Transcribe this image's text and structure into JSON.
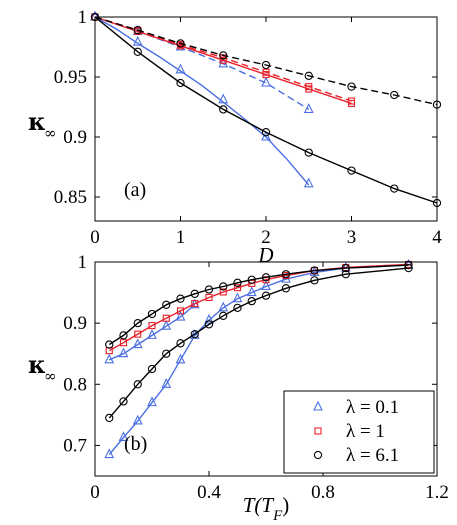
{
  "colors": {
    "blue": "#4a6fe3",
    "red": "#e8202a",
    "black": "#000000"
  },
  "chart_data": [
    {
      "type": "line",
      "panel_label": "(a)",
      "xlabel": "D",
      "ylabel_symbol": "κ",
      "ylabel_subscript": "∞",
      "xlim": [
        0,
        4
      ],
      "ylim": [
        0.83,
        1.0
      ],
      "xticks": [
        0,
        1,
        2,
        3,
        4
      ],
      "xtick_labels": [
        "0",
        "1",
        "2",
        "3",
        "4"
      ],
      "yticks": [
        0.85,
        0.9,
        0.95,
        1.0
      ],
      "ytick_labels": [
        "0.85",
        "0.9",
        "0.95",
        "1"
      ],
      "grid": false,
      "series": [
        {
          "color": "#4a6fe3",
          "style": "solid",
          "markers": false,
          "x": [
            0,
            0.25,
            0.5,
            0.75,
            1,
            1.25,
            1.5,
            1.75,
            2,
            2.25,
            2.5
          ],
          "y": [
            1.0,
            0.99,
            0.978,
            0.967,
            0.955,
            0.943,
            0.929,
            0.915,
            0.9,
            0.881,
            0.86
          ]
        },
        {
          "color": "#4a6fe3",
          "style": "none",
          "marker": "triangle",
          "x": [
            0,
            0.5,
            1,
            1.5,
            2,
            2.5
          ],
          "y": [
            1.0,
            0.979,
            0.956,
            0.931,
            0.9,
            0.861
          ]
        },
        {
          "color": "#4a6fe3",
          "style": "dashed",
          "marker": "triangle",
          "x": [
            0,
            0.5,
            1,
            1.5,
            2,
            2.5
          ],
          "y": [
            1.0,
            0.988,
            0.975,
            0.961,
            0.945,
            0.923
          ]
        },
        {
          "color": "#e8202a",
          "style": "solid",
          "marker": "square",
          "x": [
            0,
            0.5,
            1,
            1.5,
            2,
            2.5,
            3
          ],
          "y": [
            1.0,
            0.988,
            0.976,
            0.964,
            0.952,
            0.94,
            0.928
          ]
        },
        {
          "color": "#e8202a",
          "style": "dashed",
          "marker": "square",
          "x": [
            0,
            0.5,
            1,
            1.5,
            2,
            2.5,
            3
          ],
          "y": [
            1.0,
            0.989,
            0.977,
            0.966,
            0.954,
            0.942,
            0.93
          ]
        },
        {
          "color": "#000000",
          "style": "solid",
          "marker": "circle",
          "x": [
            0,
            0.5,
            1,
            1.5,
            2,
            2.5,
            3,
            3.5,
            4
          ],
          "y": [
            1.0,
            0.971,
            0.945,
            0.923,
            0.904,
            0.887,
            0.872,
            0.857,
            0.845
          ]
        },
        {
          "color": "#000000",
          "style": "dashed",
          "marker": "circle",
          "x": [
            0,
            0.5,
            1,
            1.5,
            2,
            2.5,
            3,
            3.5,
            4
          ],
          "y": [
            1.0,
            0.989,
            0.978,
            0.968,
            0.96,
            0.951,
            0.942,
            0.935,
            0.927
          ]
        }
      ]
    },
    {
      "type": "line",
      "panel_label": "(b)",
      "xlabel": "T(T_F)",
      "xlabel_main": "T(T",
      "xlabel_sub": "F",
      "xlabel_close": ")",
      "ylabel_symbol": "κ",
      "ylabel_subscript": "∞",
      "xlim": [
        0,
        1.2
      ],
      "ylim": [
        0.65,
        1.0
      ],
      "xticks": [
        0,
        0.4,
        0.8,
        1.2
      ],
      "xtick_labels": [
        "0",
        "0.4",
        "0.8",
        "1.2"
      ],
      "yticks": [
        0.7,
        0.8,
        0.9,
        1.0
      ],
      "ytick_labels": [
        "0.7",
        "0.8",
        "0.9",
        "1"
      ],
      "grid": false,
      "legend_position": "bottom-right",
      "legend": [
        {
          "label": "λ = 0.1",
          "color": "#4a6fe3",
          "marker": "triangle"
        },
        {
          "label": "λ = 1",
          "color": "#e8202a",
          "marker": "square"
        },
        {
          "label": "λ = 6.1",
          "color": "#000000",
          "marker": "circle"
        }
      ],
      "series": [
        {
          "color": "#4a6fe3",
          "style": "solid",
          "marker": "triangle",
          "x": [
            0.05,
            0.1,
            0.15,
            0.2,
            0.25,
            0.3,
            0.35,
            0.4,
            0.45,
            0.5,
            0.55,
            0.6,
            0.67,
            0.77,
            0.88,
            1.1
          ],
          "y": [
            0.685,
            0.713,
            0.74,
            0.77,
            0.8,
            0.84,
            0.88,
            0.905,
            0.925,
            0.94,
            0.95,
            0.96,
            0.972,
            0.983,
            0.99,
            0.995
          ]
        },
        {
          "color": "#4a6fe3",
          "style": "solid",
          "marker": "triangle",
          "x": [
            0.05,
            0.1,
            0.15,
            0.2,
            0.25,
            0.3,
            0.35
          ],
          "y": [
            0.84,
            0.85,
            0.865,
            0.88,
            0.895,
            0.91,
            0.93
          ]
        },
        {
          "color": "#e8202a",
          "style": "solid",
          "marker": "square",
          "x": [
            0.05,
            0.1,
            0.15,
            0.2,
            0.25,
            0.3,
            0.35,
            0.4,
            0.45,
            0.5,
            0.55,
            0.6,
            0.67,
            0.77,
            0.88,
            1.1
          ],
          "y": [
            0.855,
            0.868,
            0.882,
            0.896,
            0.908,
            0.92,
            0.932,
            0.942,
            0.951,
            0.958,
            0.965,
            0.971,
            0.978,
            0.986,
            0.991,
            0.996
          ]
        },
        {
          "color": "#000000",
          "style": "solid",
          "marker": "circle",
          "x": [
            0.05,
            0.1,
            0.15,
            0.2,
            0.25,
            0.3,
            0.35,
            0.4,
            0.45,
            0.5,
            0.55,
            0.6,
            0.67,
            0.77,
            0.88,
            1.1
          ],
          "y": [
            0.865,
            0.88,
            0.9,
            0.915,
            0.93,
            0.94,
            0.948,
            0.955,
            0.96,
            0.966,
            0.971,
            0.975,
            0.98,
            0.986,
            0.99,
            0.995
          ]
        },
        {
          "color": "#000000",
          "style": "solid",
          "marker": "circle",
          "x": [
            0.05,
            0.1,
            0.15,
            0.2,
            0.25,
            0.3,
            0.35,
            0.4,
            0.45,
            0.5,
            0.55,
            0.6,
            0.67,
            0.77,
            0.88,
            1.1
          ],
          "y": [
            0.745,
            0.772,
            0.8,
            0.825,
            0.85,
            0.867,
            0.882,
            0.898,
            0.912,
            0.925,
            0.936,
            0.945,
            0.957,
            0.97,
            0.98,
            0.99
          ]
        }
      ]
    }
  ]
}
